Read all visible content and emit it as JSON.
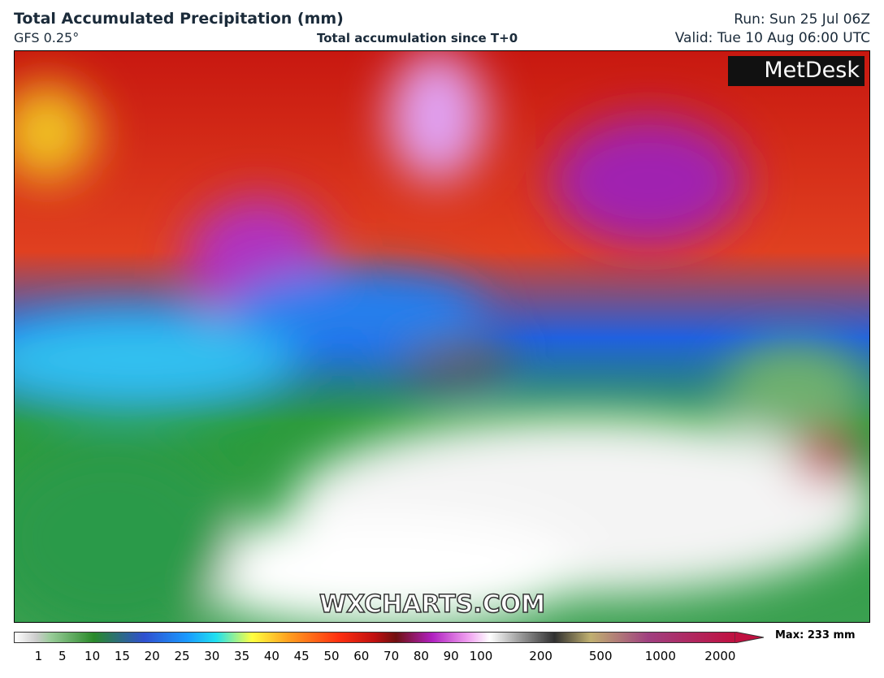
{
  "header": {
    "title": "Total Accumulated Precipitation (mm)",
    "model": "GFS 0.25°",
    "subtitle": "Total accumulation since T+0",
    "run": "Run: Sun 25 Jul 06Z",
    "valid": "Valid: Tue 10 Aug 06:00 UTC"
  },
  "map": {
    "logo": "MetDesk",
    "watermark": "WXCHARTS.COM"
  },
  "legend": {
    "labels": [
      1,
      5,
      10,
      15,
      20,
      25,
      30,
      35,
      40,
      45,
      50,
      60,
      70,
      80,
      90,
      100,
      200,
      500,
      1000,
      2000
    ],
    "max": "Max: 233 mm"
  }
}
